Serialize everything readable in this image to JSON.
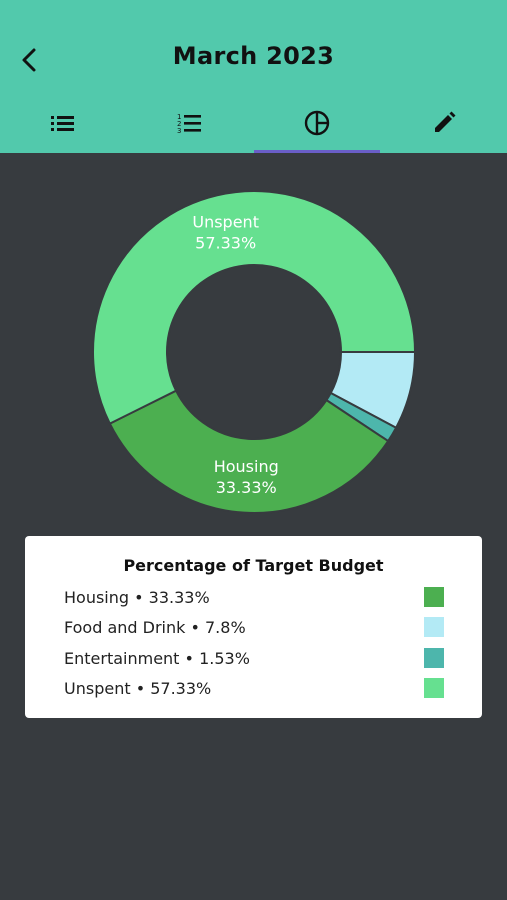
{
  "header": {
    "title": "March 2023",
    "tabs": [
      {
        "icon": "list-icon"
      },
      {
        "icon": "numbered-list-icon"
      },
      {
        "icon": "pie-chart-icon",
        "active": true
      },
      {
        "icon": "pencil-icon"
      }
    ]
  },
  "legend": {
    "title": "Percentage of Target Budget",
    "items": [
      {
        "label": "Housing • 33.33%",
        "color": "#4caf50"
      },
      {
        "label": "Food and Drink • 7.8%",
        "color": "#b3eaf5"
      },
      {
        "label": "Entertainment • 1.53%",
        "color": "#4db6ac"
      },
      {
        "label": "Unspent • 57.33%",
        "color": "#66e090"
      }
    ]
  },
  "chart_data": {
    "type": "pie",
    "donut": true,
    "categories": [
      "Housing",
      "Food and Drink",
      "Entertainment",
      "Unspent"
    ],
    "values": [
      33.33,
      7.8,
      1.53,
      57.33
    ],
    "colors": [
      "#4caf50",
      "#b3eaf5",
      "#4db6ac",
      "#66e090"
    ],
    "slice_labels": [
      {
        "name": "Housing",
        "percent": "33.33%"
      },
      {
        "name": "Unspent",
        "percent": "57.33%"
      }
    ]
  }
}
